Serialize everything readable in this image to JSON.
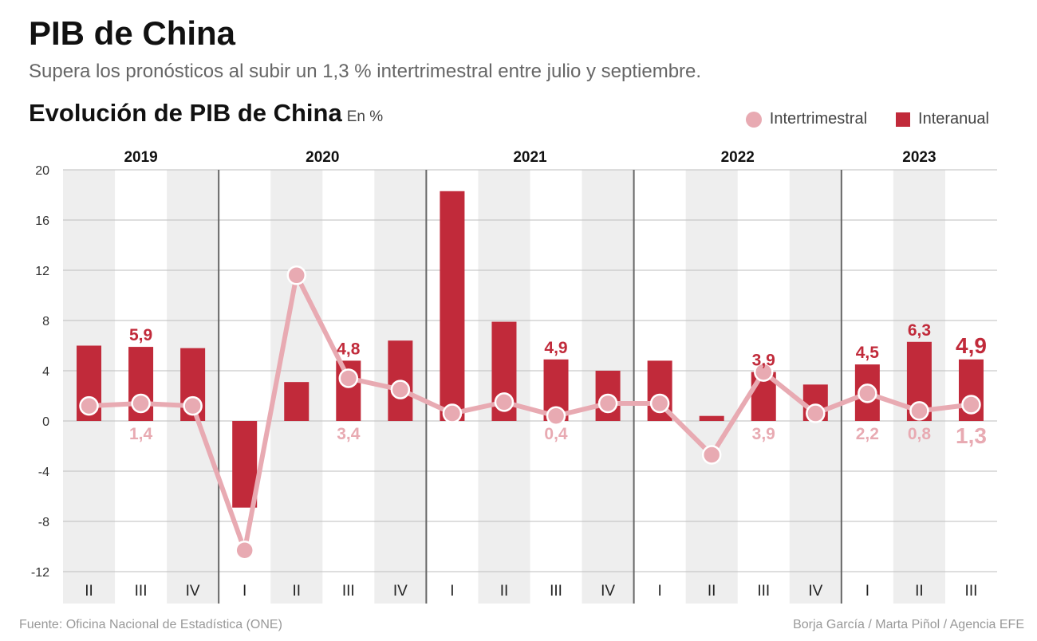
{
  "header": {
    "title": "PIB de China",
    "subtitle": "Supera los pronósticos al subir un 1,3 % intertrimestral entre julio y septiembre.",
    "chart_title": "Evolución de PIB de China",
    "unit": "En %"
  },
  "legend": {
    "intertrimestral": "Intertrimestral",
    "interanual": "Interanual"
  },
  "footer": {
    "source": "Fuente: Oficina Nacional de Estadística (ONE)",
    "credit": "Borja García / Marta Piñol / Agencia EFE"
  },
  "colors": {
    "bar": "#c12a3a",
    "line": "#e8aab2",
    "band": "#eeeeee"
  },
  "chart_data": {
    "type": "bar",
    "years": [
      {
        "label": "2019",
        "quarters": 3
      },
      {
        "label": "2020",
        "quarters": 4
      },
      {
        "label": "2021",
        "quarters": 4
      },
      {
        "label": "2022",
        "quarters": 4
      },
      {
        "label": "2023",
        "quarters": 3
      }
    ],
    "categories": [
      "II",
      "III",
      "IV",
      "I",
      "II",
      "III",
      "IV",
      "I",
      "II",
      "III",
      "IV",
      "I",
      "II",
      "III",
      "IV",
      "I",
      "II",
      "III"
    ],
    "ylim": [
      -12,
      20
    ],
    "yticks": [
      "20",
      "16",
      "12",
      "8",
      "4",
      "0",
      "-4",
      "-8",
      "-12"
    ],
    "grid": true,
    "legend_position": "top-right",
    "series": [
      {
        "name": "Interanual",
        "type": "bar",
        "values": [
          6.0,
          5.9,
          5.8,
          -6.9,
          3.1,
          4.8,
          6.4,
          18.3,
          7.9,
          4.9,
          4.0,
          4.8,
          0.4,
          3.9,
          2.9,
          4.5,
          6.3,
          4.9
        ],
        "labels": [
          null,
          "5,9",
          null,
          null,
          null,
          "4,8",
          null,
          null,
          null,
          "4,9",
          null,
          null,
          null,
          "3,9",
          null,
          "4,5",
          "6,3",
          "4,9"
        ]
      },
      {
        "name": "Intertrimestral",
        "type": "line",
        "values": [
          1.2,
          1.4,
          1.2,
          -10.3,
          11.6,
          3.4,
          2.5,
          0.6,
          1.5,
          0.4,
          1.4,
          1.4,
          -2.7,
          3.9,
          0.6,
          2.2,
          0.8,
          1.3
        ],
        "labels": [
          null,
          "1,4",
          null,
          null,
          null,
          "3,4",
          null,
          null,
          null,
          "0,4",
          null,
          null,
          null,
          "3,9",
          null,
          "2,2",
          "0,8",
          "1,3"
        ]
      }
    ]
  }
}
